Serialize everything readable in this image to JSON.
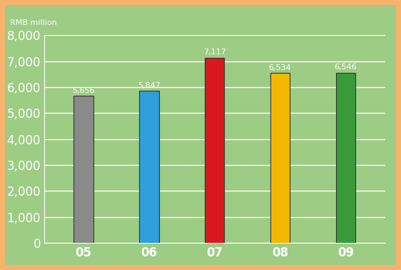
{
  "chart_data": {
    "type": "bar",
    "y_label": "RMB million",
    "categories": [
      "05",
      "06",
      "07",
      "08",
      "09"
    ],
    "values": [
      5656,
      5847,
      7117,
      6534,
      6546
    ],
    "value_labels": [
      "5,656",
      "5,847",
      "7,117",
      "6,534",
      "6,546"
    ],
    "data_labels": true,
    "colors": [
      "#8a8a8a",
      "#2f9fdc",
      "#d7191f",
      "#f5b800",
      "#3a9a3a"
    ],
    "ylim": [
      0,
      8000
    ],
    "yticks": [
      0,
      {
        "value": 1000,
        "label": "1,000"
      },
      {
        "value": 2000,
        "label": "2,000"
      },
      {
        "value": 3000,
        "label": "3,000"
      },
      {
        "value": 4000,
        "label": "4,000"
      },
      {
        "value": 5000,
        "label": "5,000"
      },
      {
        "value": 6000,
        "label": "6,000"
      },
      {
        "value": 7000,
        "label": "7,000"
      },
      {
        "value": 8000,
        "label": "8,000"
      }
    ],
    "grid": true
  }
}
